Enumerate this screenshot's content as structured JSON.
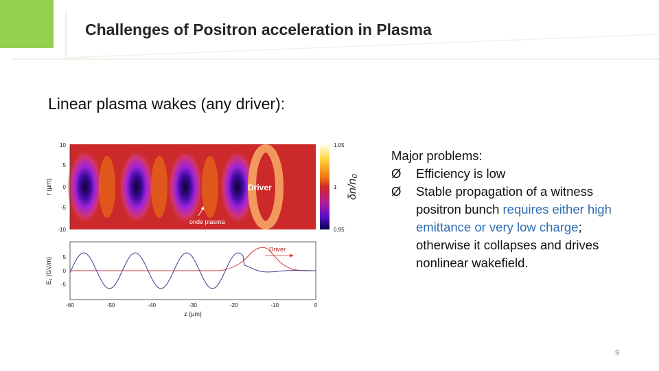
{
  "header": {
    "title": "Challenges of Positron acceleration in Plasma",
    "accent_color": "#92d050"
  },
  "subtitle": "Linear plasma wakes (any driver):",
  "figure": {
    "top_panel": {
      "ylabel": "r (µm)",
      "yticks": [
        "10",
        "5",
        "0",
        "-5",
        "-10"
      ],
      "driver_label": "Driver",
      "annotation": "onde plasma",
      "colorbar_label": "δn/n₀",
      "colorbar_ticks": [
        "1.05",
        "1",
        "0.95"
      ]
    },
    "bottom_panel": {
      "ylabel": "E",
      "ylabel_sub": "z",
      "ylabel_unit": " (GV/m)",
      "yticks": [
        "5",
        "0",
        "-5"
      ],
      "xlabel": "z (µm)",
      "xticks": [
        "-60",
        "-50",
        "-40",
        "-30",
        "-20",
        "-10",
        "0"
      ],
      "driver_label": "Driver"
    }
  },
  "problems": {
    "heading": "Major problems:",
    "bullet_symbol": "Ø",
    "items": [
      {
        "text": "Efficiency is low"
      },
      {
        "text_before": "Stable propagation of a witness positron bunch ",
        "text_highlight": "requires either high emittance or very low charge",
        "text_after": "; otherwise it collapses and drives nonlinear wakefield."
      }
    ]
  },
  "page_number": "9"
}
